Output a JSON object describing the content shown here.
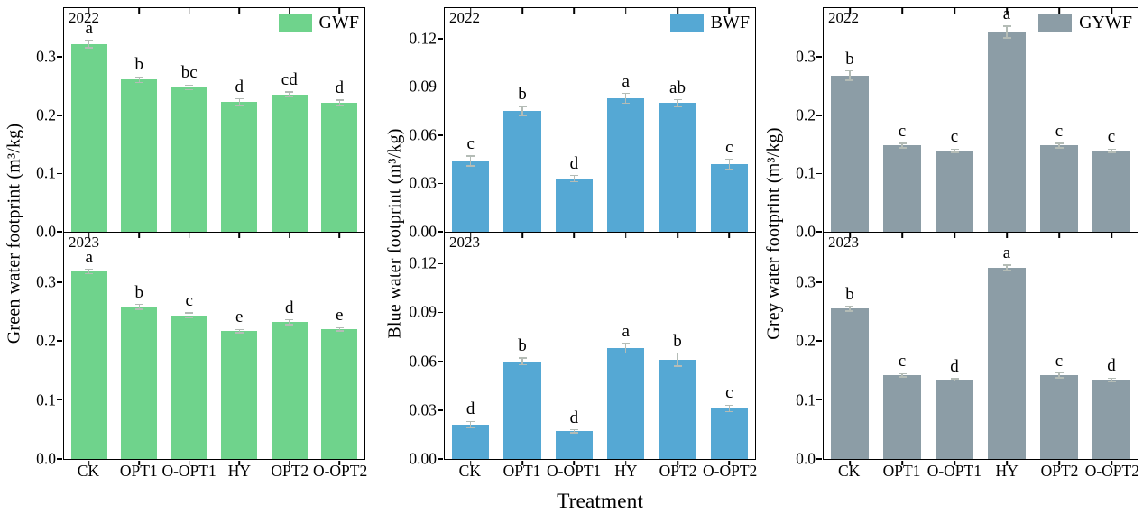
{
  "figure": {
    "xlabel": "Treatment"
  },
  "chart_data": [
    {
      "type": "bar",
      "id": "green-water-footprint",
      "ylabel": "Green water footprint (m³/kg)",
      "legend": "GWF",
      "color": "#6FD38C",
      "error_color": "#b4bcb6",
      "ymax": 0.384,
      "grid": false,
      "legend_position": "top-right-inside",
      "categories": [
        "CK",
        "OPT1",
        "O-OPT1",
        "HY",
        "OPT2",
        "O-OPT2"
      ],
      "ytick_values": [
        0.3,
        0.2,
        0.1,
        0.0
      ],
      "ytick_labels": [
        "0.3",
        "0.2",
        "0.1",
        "0.0"
      ],
      "panels": [
        {
          "year": "2022",
          "values": [
            0.322,
            0.261,
            0.248,
            0.223,
            0.236,
            0.222
          ],
          "errors": [
            0.006,
            0.005,
            0.004,
            0.005,
            0.004,
            0.004
          ],
          "letters": [
            "a",
            "b",
            "bc",
            "d",
            "cd",
            "d"
          ]
        },
        {
          "year": "2023",
          "values": [
            0.318,
            0.258,
            0.244,
            0.217,
            0.232,
            0.22
          ],
          "errors": [
            0.004,
            0.004,
            0.004,
            0.003,
            0.004,
            0.003
          ],
          "letters": [
            "a",
            "b",
            "c",
            "e",
            "d",
            "e"
          ]
        }
      ]
    },
    {
      "type": "bar",
      "id": "blue-water-footprint",
      "ylabel": "Blue water footprint (m³/kg)",
      "legend": "BWF",
      "color": "#55A8D4",
      "error_color": "#b4bcb6",
      "ymax": 0.139,
      "grid": false,
      "legend_position": "top-right-inside",
      "categories": [
        "CK",
        "OPT1",
        "O-OPT1",
        "HY",
        "OPT2",
        "O-OPT2"
      ],
      "ytick_values": [
        0.12,
        0.09,
        0.06,
        0.03,
        0.0
      ],
      "ytick_labels": [
        "0.12",
        "0.09",
        "0.06",
        "0.03",
        "0.00"
      ],
      "panels": [
        {
          "year": "2022",
          "values": [
            0.044,
            0.075,
            0.033,
            0.083,
            0.08,
            0.042
          ],
          "errors": [
            0.003,
            0.003,
            0.002,
            0.003,
            0.002,
            0.003
          ],
          "letters": [
            "c",
            "b",
            "d",
            "a",
            "ab",
            "c"
          ]
        },
        {
          "year": "2023",
          "values": [
            0.021,
            0.06,
            0.017,
            0.068,
            0.061,
            0.031
          ],
          "errors": [
            0.002,
            0.002,
            0.001,
            0.003,
            0.004,
            0.002
          ],
          "letters": [
            "d",
            "b",
            "d",
            "a",
            "b",
            "c"
          ]
        }
      ]
    },
    {
      "type": "bar",
      "id": "grey-water-footprint",
      "ylabel": "Grey water footprint (m³/kg)",
      "legend": "GYWF",
      "color": "#8C9DA6",
      "error_color": "#b4bcb6",
      "ymax": 0.384,
      "grid": false,
      "legend_position": "top-right-inside",
      "categories": [
        "CK",
        "OPT1",
        "O-OPT1",
        "HY",
        "OPT2",
        "O-OPT2"
      ],
      "ytick_values": [
        0.3,
        0.2,
        0.1,
        0.0
      ],
      "ytick_labels": [
        "0.3",
        "0.2",
        "0.1",
        "0.0"
      ],
      "panels": [
        {
          "year": "2022",
          "values": [
            0.268,
            0.148,
            0.139,
            0.343,
            0.148,
            0.139
          ],
          "errors": [
            0.008,
            0.004,
            0.003,
            0.01,
            0.004,
            0.003
          ],
          "letters": [
            "b",
            "c",
            "c",
            "a",
            "c",
            "c"
          ]
        },
        {
          "year": "2023",
          "values": [
            0.255,
            0.142,
            0.134,
            0.325,
            0.142,
            0.134
          ],
          "errors": [
            0.004,
            0.003,
            0.002,
            0.004,
            0.004,
            0.003
          ],
          "letters": [
            "b",
            "c",
            "d",
            "a",
            "c",
            "d"
          ]
        }
      ]
    }
  ]
}
